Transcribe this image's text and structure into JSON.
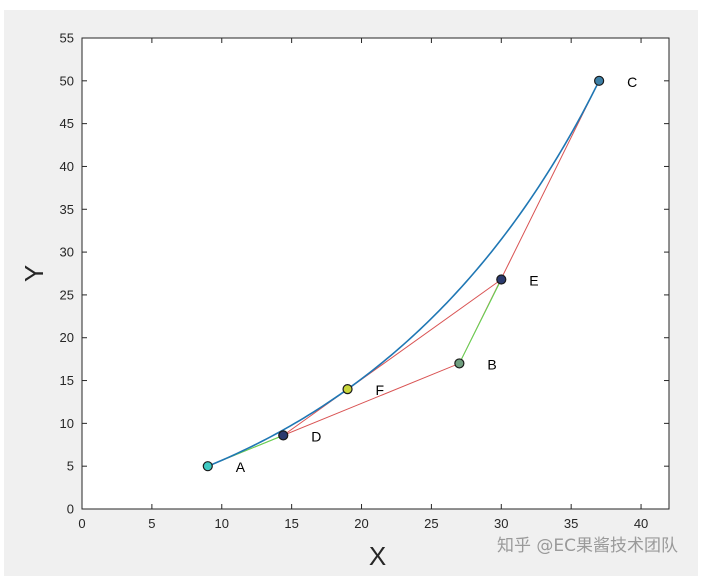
{
  "chart_data": {
    "type": "line",
    "xlabel": "X",
    "ylabel": "Y",
    "xlim": [
      0,
      42
    ],
    "ylim": [
      0,
      55
    ],
    "x_ticks": [
      0,
      5,
      10,
      15,
      20,
      25,
      30,
      35,
      40
    ],
    "y_ticks": [
      0,
      5,
      10,
      15,
      20,
      25,
      30,
      35,
      40,
      45,
      50,
      55
    ],
    "grid": false,
    "control_points": {
      "A": [
        9,
        5
      ],
      "B": [
        27,
        17
      ],
      "C": [
        37,
        50
      ]
    },
    "points": [
      {
        "label": "A",
        "x": 9,
        "y": 5,
        "color": "#3fc9c2"
      },
      {
        "label": "D",
        "x": 14.4,
        "y": 8.6,
        "color": "#2b3a6e"
      },
      {
        "label": "F",
        "x": 19,
        "y": 14,
        "color": "#c8d63a"
      },
      {
        "label": "B",
        "x": 27,
        "y": 17,
        "color": "#6f9e7e"
      },
      {
        "label": "E",
        "x": 30,
        "y": 26.8,
        "color": "#2b3a6e"
      },
      {
        "label": "C",
        "x": 37,
        "y": 50,
        "color": "#3d7fa6"
      }
    ],
    "series": [
      {
        "style": "red-polyline",
        "color": "#d95353",
        "path": [
          "A",
          "B",
          "C"
        ]
      },
      {
        "style": "red-polyline",
        "color": "#d95353",
        "path": [
          "D",
          "E"
        ]
      },
      {
        "style": "green-segment",
        "color": "#5cdc52",
        "path": [
          "A",
          "D"
        ]
      },
      {
        "style": "green-segment",
        "color": "#5cdc52",
        "path": [
          "B",
          "E"
        ]
      },
      {
        "style": "bezier-curve",
        "color": "#1f77b4",
        "from": "A",
        "control": "B",
        "to": "C"
      }
    ]
  },
  "watermark": "知乎 @EC果酱技术团队"
}
